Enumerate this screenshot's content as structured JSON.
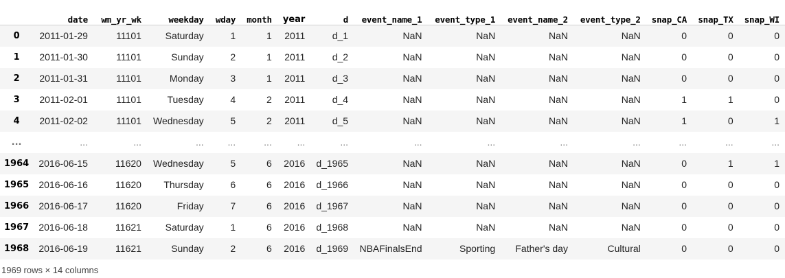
{
  "table": {
    "index_header": "",
    "columns": [
      "date",
      "wm_yr_wk",
      "weekday",
      "wday",
      "month",
      "year",
      "d",
      "event_name_1",
      "event_type_1",
      "event_name_2",
      "event_type_2",
      "snap_CA",
      "snap_TX",
      "snap_WI"
    ],
    "rows": [
      {
        "index": "0",
        "cells": [
          "2011-01-29",
          "11101",
          "Saturday",
          "1",
          "1",
          "2011",
          "d_1",
          "NaN",
          "NaN",
          "NaN",
          "NaN",
          "0",
          "0",
          "0"
        ]
      },
      {
        "index": "1",
        "cells": [
          "2011-01-30",
          "11101",
          "Sunday",
          "2",
          "1",
          "2011",
          "d_2",
          "NaN",
          "NaN",
          "NaN",
          "NaN",
          "0",
          "0",
          "0"
        ]
      },
      {
        "index": "2",
        "cells": [
          "2011-01-31",
          "11101",
          "Monday",
          "3",
          "1",
          "2011",
          "d_3",
          "NaN",
          "NaN",
          "NaN",
          "NaN",
          "0",
          "0",
          "0"
        ]
      },
      {
        "index": "3",
        "cells": [
          "2011-02-01",
          "11101",
          "Tuesday",
          "4",
          "2",
          "2011",
          "d_4",
          "NaN",
          "NaN",
          "NaN",
          "NaN",
          "1",
          "1",
          "0"
        ]
      },
      {
        "index": "4",
        "cells": [
          "2011-02-02",
          "11101",
          "Wednesday",
          "5",
          "2",
          "2011",
          "d_5",
          "NaN",
          "NaN",
          "NaN",
          "NaN",
          "1",
          "0",
          "1"
        ]
      },
      {
        "index": "...",
        "cells": [
          "...",
          "...",
          "...",
          "...",
          "...",
          "...",
          "...",
          "...",
          "...",
          "...",
          "...",
          "...",
          "...",
          "..."
        ],
        "ellipsis": true
      },
      {
        "index": "1964",
        "cells": [
          "2016-06-15",
          "11620",
          "Wednesday",
          "5",
          "6",
          "2016",
          "d_1965",
          "NaN",
          "NaN",
          "NaN",
          "NaN",
          "0",
          "1",
          "1"
        ]
      },
      {
        "index": "1965",
        "cells": [
          "2016-06-16",
          "11620",
          "Thursday",
          "6",
          "6",
          "2016",
          "d_1966",
          "NaN",
          "NaN",
          "NaN",
          "NaN",
          "0",
          "0",
          "0"
        ]
      },
      {
        "index": "1966",
        "cells": [
          "2016-06-17",
          "11620",
          "Friday",
          "7",
          "6",
          "2016",
          "d_1967",
          "NaN",
          "NaN",
          "NaN",
          "NaN",
          "0",
          "0",
          "0"
        ]
      },
      {
        "index": "1967",
        "cells": [
          "2016-06-18",
          "11621",
          "Saturday",
          "1",
          "6",
          "2016",
          "d_1968",
          "NaN",
          "NaN",
          "NaN",
          "NaN",
          "0",
          "0",
          "0"
        ]
      },
      {
        "index": "1968",
        "cells": [
          "2016-06-19",
          "11621",
          "Sunday",
          "2",
          "6",
          "2016",
          "d_1969",
          "NBAFinalsEnd",
          "Sporting",
          "Father's day",
          "Cultural",
          "0",
          "0",
          "0"
        ]
      }
    ]
  },
  "summary": "1969 rows × 14 columns"
}
